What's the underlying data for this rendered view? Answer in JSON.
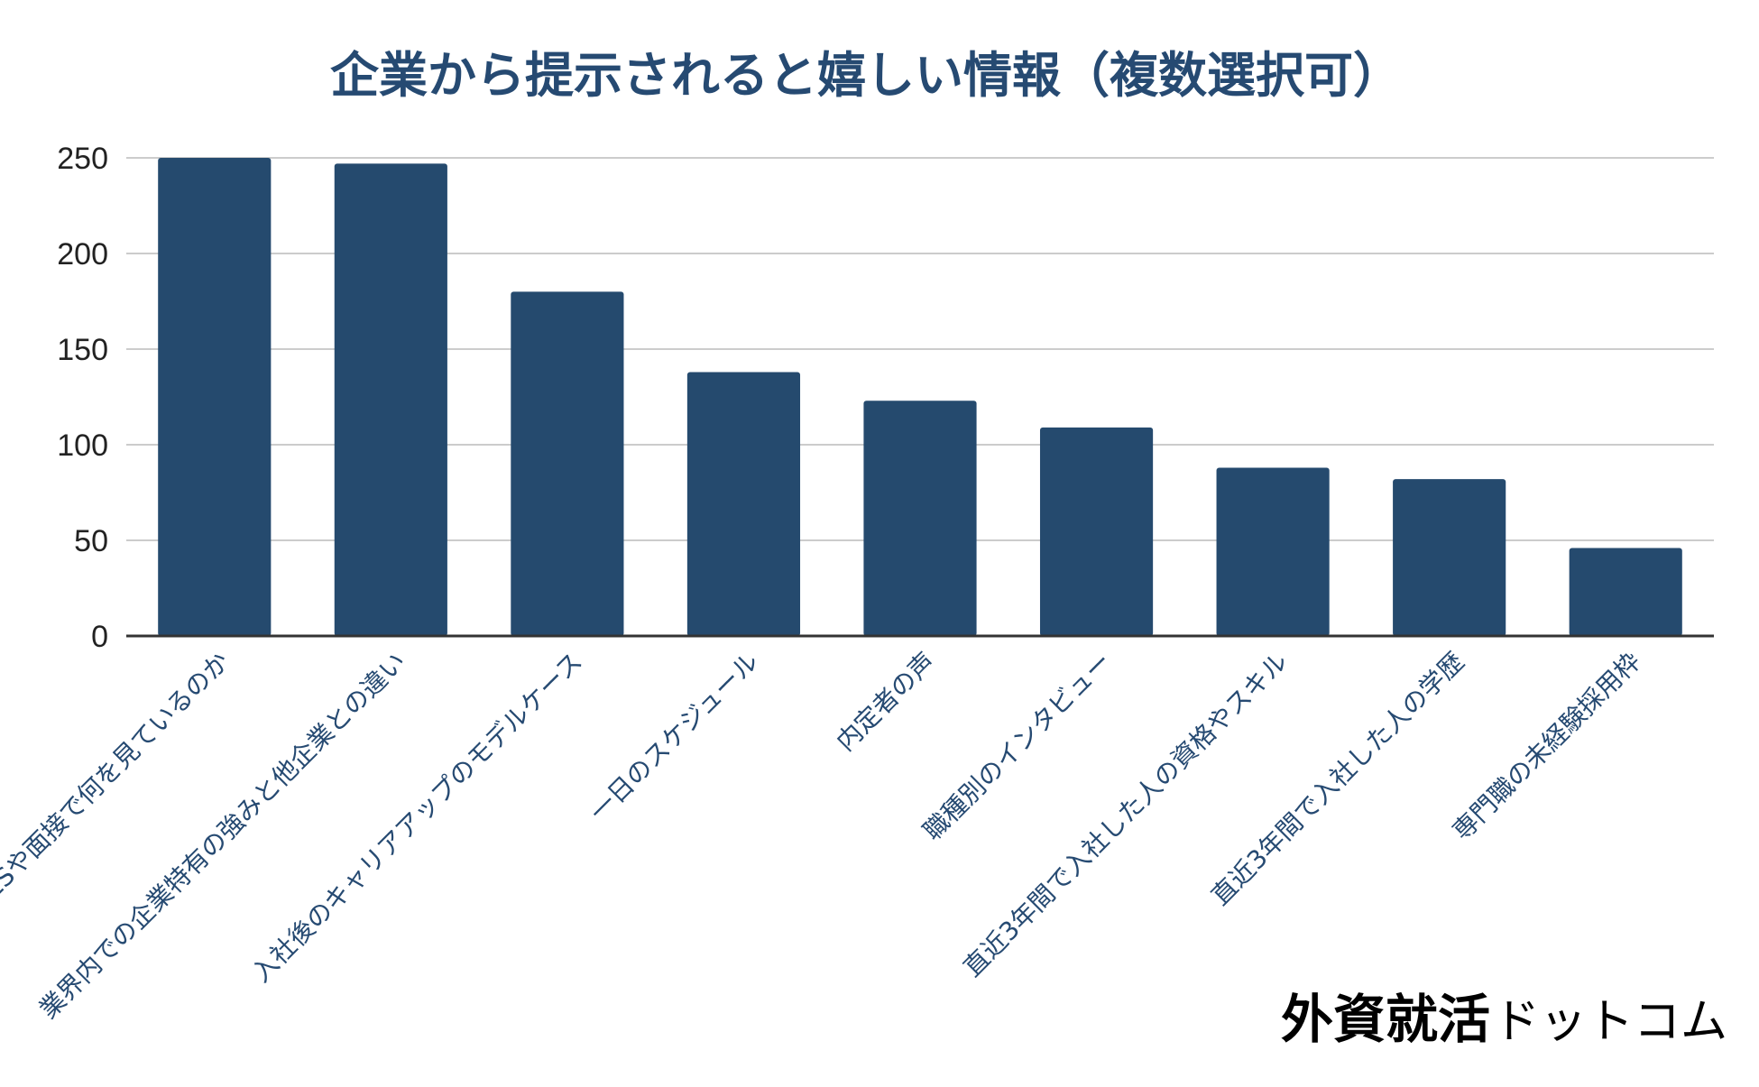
{
  "chart_data": {
    "type": "bar",
    "title": "企業から提示されると嬉しい情報（複数選択可）",
    "categories": [
      "ESや面接で何を見ているのか",
      "業界内での企業特有の強みと他企業との違い",
      "入社後のキャリアアップのモデルケース",
      "一日のスケジュール",
      "内定者の声",
      "職種別のインタビュー",
      "直近3年間で入社した人の資格やスキル",
      "直近3年間で入社した人の学歴",
      "専門職の未経験採用枠"
    ],
    "values": [
      250,
      247,
      180,
      138,
      123,
      109,
      88,
      82,
      46
    ],
    "ylim": [
      0,
      250
    ],
    "yticks": [
      0,
      50,
      100,
      150,
      200,
      250
    ],
    "xlabel": "",
    "ylabel": "",
    "grid": true,
    "legend": "none",
    "colors": {
      "bar": "#254a6e",
      "title": "#264a72",
      "grid": "#cccccc",
      "axis": "#333333"
    }
  },
  "logo": {
    "main": "外資就活",
    "sub": "ドットコム"
  }
}
